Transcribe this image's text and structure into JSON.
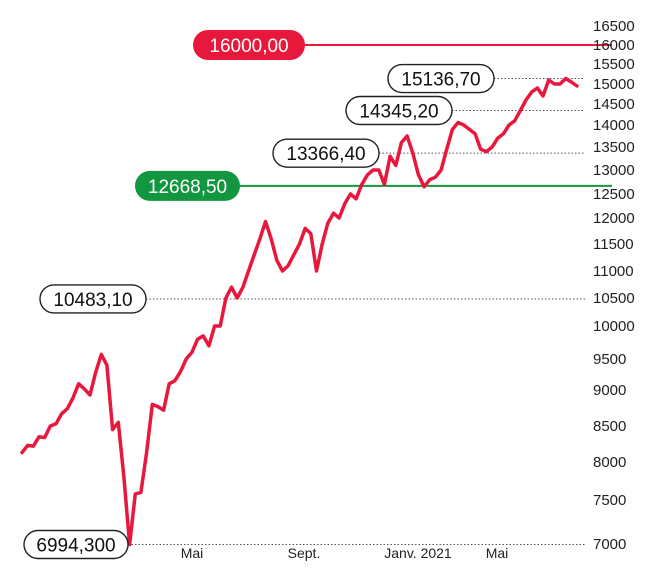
{
  "chart_data": {
    "type": "line",
    "x_ticks": [
      "Mai",
      "Sept.",
      "Janv. 2021",
      "Mai"
    ],
    "y_ticks": [
      "7000",
      "7500",
      "8000",
      "8500",
      "9000",
      "9500",
      "10000",
      "10500",
      "11000",
      "11500",
      "12000",
      "12500",
      "13000",
      "13500",
      "14000",
      "14500",
      "15000",
      "15500",
      "16000",
      "16500"
    ],
    "ylim": [
      6994,
      16500
    ],
    "grid": false,
    "legend": "none",
    "line_color": "#e8173c",
    "series": [
      {
        "values": [
          8130,
          8230,
          8220,
          8350,
          8340,
          8500,
          8530,
          8670,
          8740,
          8890,
          9100,
          9020,
          8930,
          9280,
          9570,
          9400,
          8450,
          8550,
          7800,
          6994.3,
          7580,
          7600,
          8130,
          8800,
          8770,
          8720,
          9100,
          9150,
          9300,
          9500,
          9600,
          9800,
          9850,
          9700,
          10000,
          10000,
          10500,
          10700,
          10500,
          10700,
          11000,
          11300,
          11600,
          11930,
          11600,
          11200,
          11000,
          11100,
          11300,
          11500,
          11800,
          11700,
          11000,
          11500,
          11900,
          12100,
          12000,
          12300,
          12500,
          12400,
          12700,
          12900,
          13000,
          13000,
          12700,
          13300,
          13100,
          13600,
          13750,
          13366.4,
          12900,
          12650,
          12800,
          12850,
          13000,
          13450,
          13900,
          14060,
          14000,
          13900,
          13800,
          13450,
          13400,
          13500,
          13700,
          13800,
          14000,
          14100,
          14345.2,
          14600,
          14800,
          14900,
          14700,
          15100,
          15000,
          15000,
          15136.7,
          15050,
          14950
        ]
      }
    ],
    "reference_lines": [
      {
        "value": 16000,
        "label": "16000,00",
        "color": "#e8173c",
        "style": "solid"
      },
      {
        "value": 12668.5,
        "label": "12668,50",
        "color": "#12963f",
        "style": "solid"
      }
    ],
    "annotations": [
      {
        "value": 15136.7,
        "label": "15136,70"
      },
      {
        "value": 14345.2,
        "label": "14345,20"
      },
      {
        "value": 13366.4,
        "label": "13366,40"
      },
      {
        "value": 10483.1,
        "label": "10483,10"
      },
      {
        "value": 6994.3,
        "label": "6994,300"
      }
    ]
  }
}
